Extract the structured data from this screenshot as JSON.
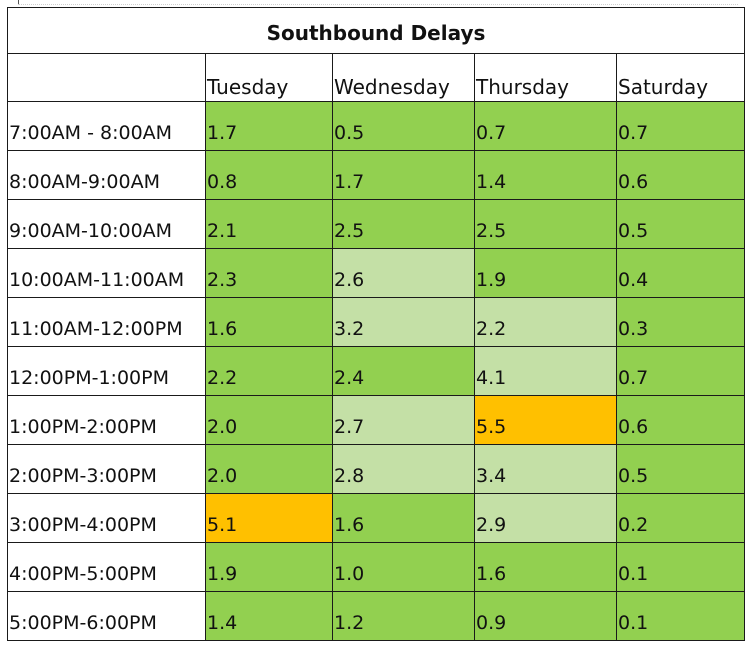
{
  "table": {
    "title": "Southbound Delays",
    "corner_label": "",
    "columns": [
      "Tuesday",
      "Wednesday",
      "Thursday",
      "Saturday"
    ],
    "legend_colors": {
      "good": "#92d050",
      "light": "#c4e0a6",
      "high": "#ffc000",
      "time_column": "#ffffff"
    },
    "rows": [
      {
        "time": "7:00AM - 8:00AM",
        "cells": [
          {
            "value": "1.7",
            "level": "good"
          },
          {
            "value": "0.5",
            "level": "good"
          },
          {
            "value": "0.7",
            "level": "good"
          },
          {
            "value": "0.7",
            "level": "good"
          }
        ]
      },
      {
        "time": "8:00AM-9:00AM",
        "cells": [
          {
            "value": "0.8",
            "level": "good"
          },
          {
            "value": "1.7",
            "level": "good"
          },
          {
            "value": "1.4",
            "level": "good"
          },
          {
            "value": "0.6",
            "level": "good"
          }
        ]
      },
      {
        "time": "9:00AM-10:00AM",
        "cells": [
          {
            "value": "2.1",
            "level": "good"
          },
          {
            "value": "2.5",
            "level": "good"
          },
          {
            "value": "2.5",
            "level": "good"
          },
          {
            "value": "0.5",
            "level": "good"
          }
        ]
      },
      {
        "time": "10:00AM-11:00AM",
        "cells": [
          {
            "value": "2.3",
            "level": "good"
          },
          {
            "value": "2.6",
            "level": "light"
          },
          {
            "value": "1.9",
            "level": "good"
          },
          {
            "value": "0.4",
            "level": "good"
          }
        ]
      },
      {
        "time": "11:00AM-12:00PM",
        "cells": [
          {
            "value": "1.6",
            "level": "good"
          },
          {
            "value": "3.2",
            "level": "light"
          },
          {
            "value": "2.2",
            "level": "light"
          },
          {
            "value": "0.3",
            "level": "good"
          }
        ]
      },
      {
        "time": "12:00PM-1:00PM",
        "cells": [
          {
            "value": "2.2",
            "level": "good"
          },
          {
            "value": "2.4",
            "level": "good"
          },
          {
            "value": "4.1",
            "level": "light"
          },
          {
            "value": "0.7",
            "level": "good"
          }
        ]
      },
      {
        "time": "1:00PM-2:00PM",
        "cells": [
          {
            "value": "2.0",
            "level": "good"
          },
          {
            "value": "2.7",
            "level": "light"
          },
          {
            "value": "5.5",
            "level": "high"
          },
          {
            "value": "0.6",
            "level": "good"
          }
        ]
      },
      {
        "time": "2:00PM-3:00PM",
        "cells": [
          {
            "value": "2.0",
            "level": "good"
          },
          {
            "value": "2.8",
            "level": "light"
          },
          {
            "value": "3.4",
            "level": "light"
          },
          {
            "value": "0.5",
            "level": "good"
          }
        ]
      },
      {
        "time": "3:00PM-4:00PM",
        "cells": [
          {
            "value": "5.1",
            "level": "high"
          },
          {
            "value": "1.6",
            "level": "good"
          },
          {
            "value": "2.9",
            "level": "light"
          },
          {
            "value": "0.2",
            "level": "good"
          }
        ]
      },
      {
        "time": "4:00PM-5:00PM",
        "cells": [
          {
            "value": "1.9",
            "level": "good"
          },
          {
            "value": "1.0",
            "level": "good"
          },
          {
            "value": "1.6",
            "level": "good"
          },
          {
            "value": "0.1",
            "level": "good"
          }
        ]
      },
      {
        "time": "5:00PM-6:00PM",
        "cells": [
          {
            "value": "1.4",
            "level": "good"
          },
          {
            "value": "1.2",
            "level": "good"
          },
          {
            "value": "0.9",
            "level": "good"
          },
          {
            "value": "0.1",
            "level": "good"
          }
        ]
      }
    ]
  }
}
